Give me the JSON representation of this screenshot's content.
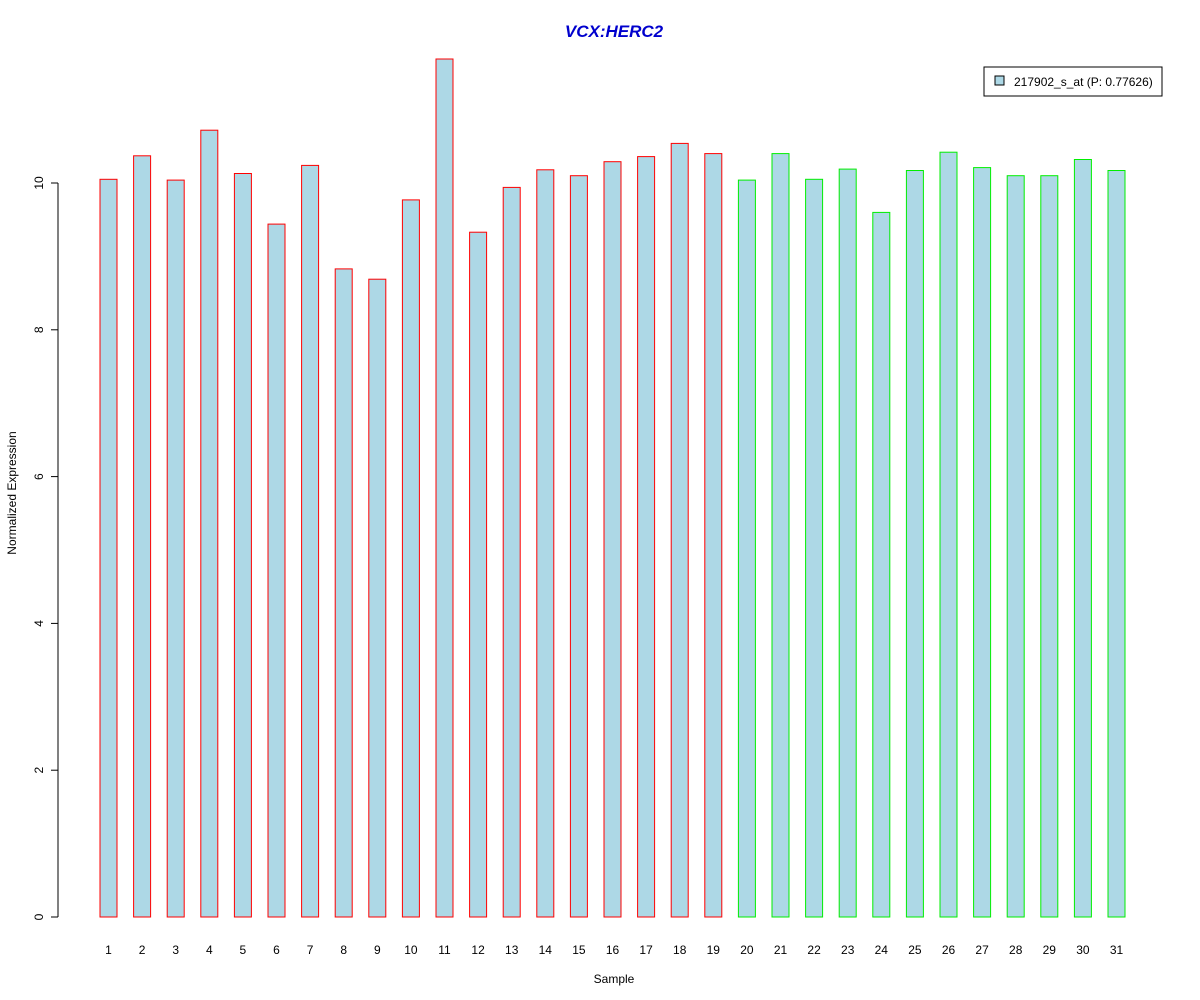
{
  "chart_data": {
    "type": "bar",
    "title": "VCX:HERC2",
    "xlabel": "Sample",
    "ylabel": "Normalized Expression",
    "categories": [
      "1",
      "2",
      "3",
      "4",
      "5",
      "6",
      "7",
      "8",
      "9",
      "10",
      "11",
      "12",
      "13",
      "14",
      "15",
      "16",
      "17",
      "18",
      "19",
      "20",
      "21",
      "22",
      "23",
      "24",
      "25",
      "26",
      "27",
      "28",
      "29",
      "30",
      "31"
    ],
    "series": [
      {
        "name": "217902_s_at (P: 0.77626)",
        "values": [
          10.05,
          10.37,
          10.04,
          10.72,
          10.13,
          9.44,
          10.24,
          8.83,
          8.69,
          9.77,
          11.69,
          9.33,
          9.94,
          10.18,
          10.1,
          10.29,
          10.36,
          10.54,
          10.4,
          10.04,
          10.4,
          10.05,
          10.19,
          9.6,
          10.17,
          10.42,
          10.21,
          10.1,
          10.1,
          10.32,
          10.17
        ]
      }
    ],
    "group_border_colors": [
      "#ff0000",
      "#ff0000",
      "#ff0000",
      "#ff0000",
      "#ff0000",
      "#ff0000",
      "#ff0000",
      "#ff0000",
      "#ff0000",
      "#ff0000",
      "#ff0000",
      "#ff0000",
      "#ff0000",
      "#ff0000",
      "#ff0000",
      "#ff0000",
      "#ff0000",
      "#ff0000",
      "#ff0000",
      "#00ee00",
      "#00ee00",
      "#00ee00",
      "#00ee00",
      "#00ee00",
      "#00ee00",
      "#00ee00",
      "#00ee00",
      "#00ee00",
      "#00ee00",
      "#00ee00",
      "#00ee00"
    ],
    "yticks": [
      "0",
      "2",
      "4",
      "6",
      "8",
      "10"
    ],
    "ylim": [
      0,
      11.69
    ],
    "grid": false,
    "legend_position": "top-right",
    "colors": {
      "bar_fill": "#add8e6",
      "title": "#0000cd",
      "axis": "#000000"
    }
  }
}
